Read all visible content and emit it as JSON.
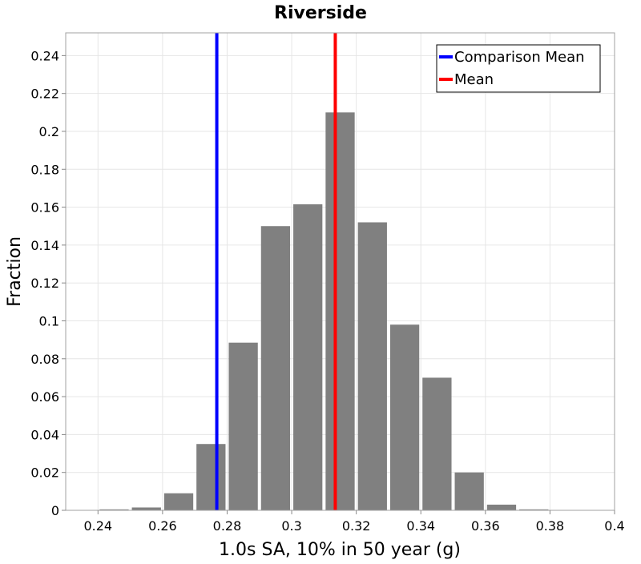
{
  "chart_data": {
    "type": "bar",
    "title": "Riverside",
    "xlabel": "1.0s SA, 10% in 50 year (g)",
    "ylabel": "Fraction",
    "xlim": [
      0.23,
      0.4
    ],
    "ylim": [
      0,
      0.252
    ],
    "bin_width": 0.01,
    "bars": [
      {
        "center": 0.245,
        "value": 0.0005
      },
      {
        "center": 0.255,
        "value": 0.0015
      },
      {
        "center": 0.265,
        "value": 0.009
      },
      {
        "center": 0.275,
        "value": 0.035
      },
      {
        "center": 0.285,
        "value": 0.0885
      },
      {
        "center": 0.295,
        "value": 0.15
      },
      {
        "center": 0.305,
        "value": 0.1615
      },
      {
        "center": 0.315,
        "value": 0.21
      },
      {
        "center": 0.325,
        "value": 0.152
      },
      {
        "center": 0.335,
        "value": 0.098
      },
      {
        "center": 0.345,
        "value": 0.07
      },
      {
        "center": 0.355,
        "value": 0.02
      },
      {
        "center": 0.365,
        "value": 0.003
      },
      {
        "center": 0.375,
        "value": 0.0005
      },
      {
        "center": 0.385,
        "value": 0.0002
      },
      {
        "center": 0.395,
        "value": 0.0002
      }
    ],
    "bar_color": "#808080",
    "x_ticks": [
      "0.24",
      "0.26",
      "0.28",
      "0.3",
      "0.32",
      "0.34",
      "0.36",
      "0.38",
      "0.4"
    ],
    "y_ticks": [
      "0",
      "0.02",
      "0.04",
      "0.06",
      "0.08",
      "0.1",
      "0.12",
      "0.14",
      "0.16",
      "0.18",
      "0.2",
      "0.22",
      "0.24"
    ],
    "vertical_lines": [
      {
        "name": "Comparison Mean",
        "x": 0.2768,
        "color": "#0000ff"
      },
      {
        "name": "Mean",
        "x": 0.3135,
        "color": "#ff0000"
      }
    ],
    "legend": [
      "Comparison Mean",
      "Mean"
    ],
    "legend_position": "top-right",
    "grid": true
  }
}
